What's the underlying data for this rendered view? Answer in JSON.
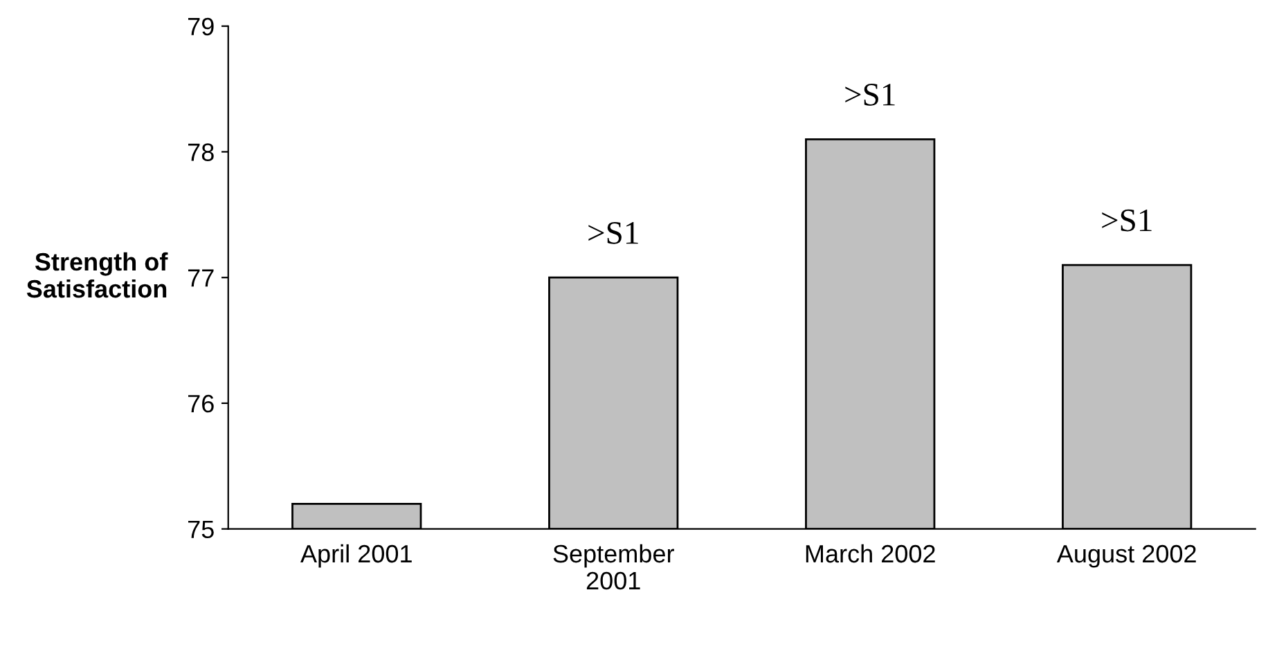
{
  "chart_data": {
    "type": "bar",
    "ylabel": "Strength of\nSatisfaction",
    "categories": [
      "April 2001",
      "September\n2001",
      "March 2002",
      "August 2002"
    ],
    "values": [
      75.2,
      77.0,
      78.1,
      77.1
    ],
    "value_labels": [
      null,
      ">S1",
      ">S1",
      ">S1"
    ],
    "color": "#c0c0c0",
    "ylim": [
      75,
      79
    ],
    "yticks": [
      75,
      76,
      77,
      78,
      79
    ],
    "grid": false,
    "legend": false
  }
}
